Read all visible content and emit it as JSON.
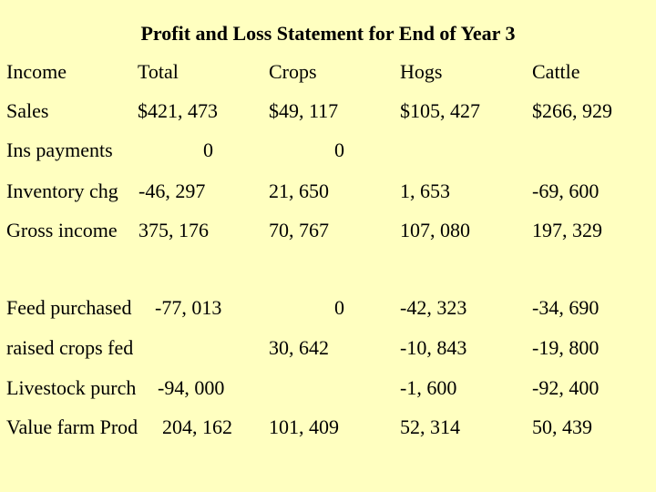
{
  "title": "Profit and Loss Statement for End of Year 3",
  "header": {
    "label": "Income",
    "total": "Total",
    "crops": "Crops",
    "hogs": "Hogs",
    "cattle": "Cattle"
  },
  "rows": [
    {
      "label": "Sales",
      "total": "$421, 473",
      "crops": "$49, 117",
      "hogs": "$105, 427",
      "cattle": "$266, 929"
    },
    {
      "label": "Ins payments",
      "total": "0",
      "crops": "0",
      "hogs": "",
      "cattle": ""
    },
    {
      "label": "Inventory chg",
      "total": "-46, 297",
      "crops": "21, 650",
      "hogs": "1, 653",
      "cattle": "-69, 600"
    },
    {
      "label": "Gross income",
      "total": "375, 176",
      "crops": "70, 767",
      "hogs": "107, 080",
      "cattle": "197, 329"
    },
    {
      "label": "Feed purchased",
      "total": "-77, 013",
      "crops": "0",
      "hogs": "-42, 323",
      "cattle": "-34, 690"
    },
    {
      "label": "raised crops fed",
      "total": "",
      "crops": "30, 642",
      "hogs": "-10, 843",
      "cattle": "-19, 800"
    },
    {
      "label": "Livestock purch",
      "total": "-94, 000",
      "crops": "",
      "hogs": "-1, 600",
      "cattle": "-92, 400"
    },
    {
      "label": "Value farm Prod",
      "total": "204, 162",
      "crops": "101, 409",
      "hogs": "52, 314",
      "cattle": "50, 439"
    }
  ]
}
